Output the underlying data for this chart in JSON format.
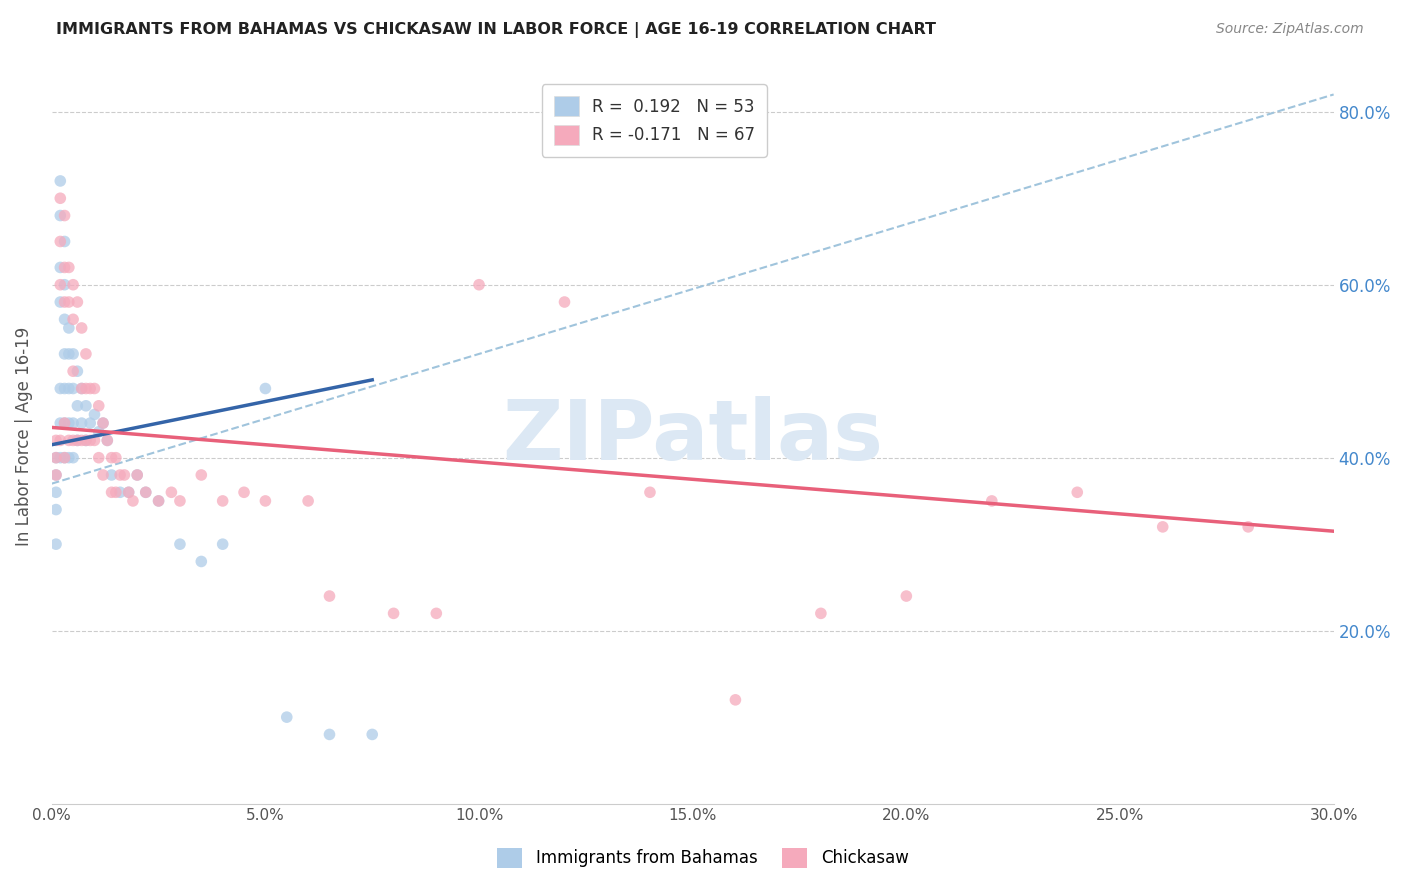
{
  "title": "IMMIGRANTS FROM BAHAMAS VS CHICKASAW IN LABOR FORCE | AGE 16-19 CORRELATION CHART",
  "source": "Source: ZipAtlas.com",
  "ylabel": "In Labor Force | Age 16-19",
  "xlim": [
    0.0,
    0.3
  ],
  "ylim": [
    0.0,
    0.85
  ],
  "xticks": [
    0.0,
    0.05,
    0.1,
    0.15,
    0.2,
    0.25,
    0.3
  ],
  "xtick_labels": [
    "0.0%",
    "5.0%",
    "10.0%",
    "15.0%",
    "20.0%",
    "25.0%",
    "30.0%"
  ],
  "yticks_right": [
    0.2,
    0.4,
    0.6,
    0.8
  ],
  "ytick_labels_right": [
    "20.0%",
    "40.0%",
    "60.0%",
    "80.0%"
  ],
  "blue_scatter_color": "#aecce8",
  "pink_scatter_color": "#f5aabc",
  "blue_trend_color": "#3464a8",
  "pink_trend_color": "#e8607a",
  "dashed_line_color": "#a0c4dc",
  "watermark_text": "ZIPatlas",
  "watermark_color": "#dce8f4",
  "background_color": "#ffffff",
  "grid_color": "#cccccc",
  "title_color": "#222222",
  "right_axis_color": "#4488cc",
  "marker_size": 70,
  "blue_x": [
    0.001,
    0.001,
    0.001,
    0.001,
    0.001,
    0.002,
    0.002,
    0.002,
    0.002,
    0.002,
    0.002,
    0.002,
    0.003,
    0.003,
    0.003,
    0.003,
    0.003,
    0.003,
    0.003,
    0.004,
    0.004,
    0.004,
    0.004,
    0.004,
    0.005,
    0.005,
    0.005,
    0.005,
    0.006,
    0.006,
    0.006,
    0.007,
    0.007,
    0.008,
    0.008,
    0.009,
    0.01,
    0.011,
    0.012,
    0.013,
    0.014,
    0.016,
    0.018,
    0.02,
    0.022,
    0.025,
    0.03,
    0.035,
    0.04,
    0.05,
    0.055,
    0.065,
    0.075
  ],
  "blue_y": [
    0.4,
    0.38,
    0.36,
    0.34,
    0.3,
    0.72,
    0.68,
    0.62,
    0.58,
    0.48,
    0.44,
    0.4,
    0.65,
    0.6,
    0.56,
    0.52,
    0.48,
    0.44,
    0.4,
    0.55,
    0.52,
    0.48,
    0.44,
    0.4,
    0.52,
    0.48,
    0.44,
    0.4,
    0.5,
    0.46,
    0.42,
    0.48,
    0.44,
    0.46,
    0.42,
    0.44,
    0.45,
    0.43,
    0.44,
    0.42,
    0.38,
    0.36,
    0.36,
    0.38,
    0.36,
    0.35,
    0.3,
    0.28,
    0.3,
    0.48,
    0.1,
    0.08,
    0.08
  ],
  "pink_x": [
    0.001,
    0.001,
    0.001,
    0.002,
    0.002,
    0.002,
    0.002,
    0.003,
    0.003,
    0.003,
    0.003,
    0.003,
    0.004,
    0.004,
    0.004,
    0.005,
    0.005,
    0.005,
    0.005,
    0.006,
    0.006,
    0.007,
    0.007,
    0.007,
    0.008,
    0.008,
    0.008,
    0.009,
    0.009,
    0.01,
    0.01,
    0.011,
    0.011,
    0.012,
    0.012,
    0.013,
    0.014,
    0.014,
    0.015,
    0.015,
    0.016,
    0.017,
    0.018,
    0.019,
    0.02,
    0.022,
    0.025,
    0.028,
    0.03,
    0.035,
    0.04,
    0.045,
    0.05,
    0.06,
    0.065,
    0.08,
    0.09,
    0.1,
    0.12,
    0.14,
    0.16,
    0.18,
    0.2,
    0.22,
    0.24,
    0.26,
    0.28
  ],
  "pink_y": [
    0.42,
    0.4,
    0.38,
    0.7,
    0.65,
    0.6,
    0.42,
    0.68,
    0.62,
    0.58,
    0.44,
    0.4,
    0.62,
    0.58,
    0.42,
    0.6,
    0.56,
    0.5,
    0.42,
    0.58,
    0.42,
    0.55,
    0.48,
    0.42,
    0.52,
    0.48,
    0.42,
    0.48,
    0.42,
    0.48,
    0.42,
    0.46,
    0.4,
    0.44,
    0.38,
    0.42,
    0.4,
    0.36,
    0.4,
    0.36,
    0.38,
    0.38,
    0.36,
    0.35,
    0.38,
    0.36,
    0.35,
    0.36,
    0.35,
    0.38,
    0.35,
    0.36,
    0.35,
    0.35,
    0.24,
    0.22,
    0.22,
    0.6,
    0.58,
    0.36,
    0.12,
    0.22,
    0.24,
    0.35,
    0.36,
    0.32,
    0.32
  ],
  "blue_trend_x": [
    0.0,
    0.075
  ],
  "blue_trend_y": [
    0.415,
    0.49
  ],
  "pink_trend_x": [
    0.0,
    0.3
  ],
  "pink_trend_y": [
    0.435,
    0.315
  ],
  "dashed_line_x": [
    0.0,
    0.3
  ],
  "dashed_line_y": [
    0.37,
    0.82
  ]
}
